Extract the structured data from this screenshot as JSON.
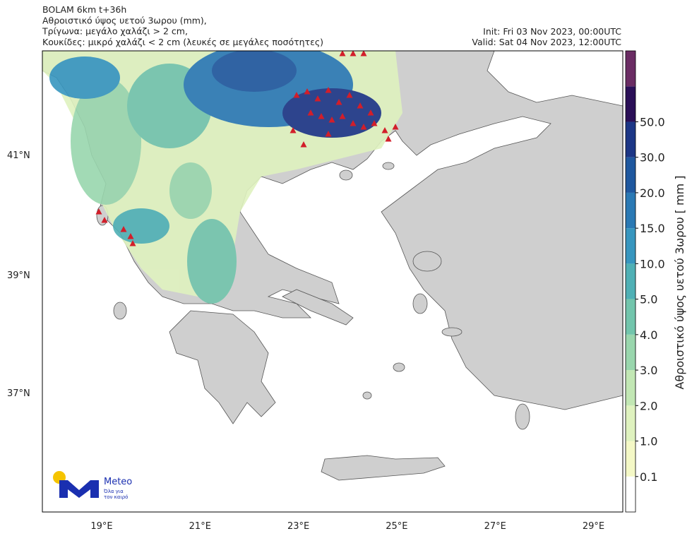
{
  "header": {
    "lines": [
      "BOLAM 6km t+36h",
      "Αθροιστικό ύψος υετού 3ωρου (mm),",
      "Τρίγωνα: μεγάλο χαλάζι > 2 cm,",
      "Κουκίδες: μικρό χαλάζι < 2 cm (λευκές σε μεγάλες ποσότητες)"
    ],
    "init": "Init: Fri 03 Nov 2023, 00:00UTC",
    "valid": "Valid: Sat 04 Nov 2023, 12:00UTC"
  },
  "axes": {
    "lat_labels": [
      "41°N",
      "39°N",
      "37°N"
    ],
    "lon_labels": [
      "19°E",
      "21°E",
      "23°E",
      "25°E",
      "27°E",
      "29°E"
    ]
  },
  "colorbar": {
    "label": "Αθροιστικό ύψος υετού 3ωρου [ mm ]",
    "colors": [
      "#ffffff",
      "#f4f8c6",
      "#dff2bf",
      "#c2e7b4",
      "#99d6ad",
      "#72c5ac",
      "#4fb0b5",
      "#3796bf",
      "#2a79b4",
      "#1f589f",
      "#1c3686",
      "#2a0f57",
      "#6a2c63"
    ],
    "tick_labels": [
      "0.1",
      "1.0",
      "2.0",
      "3.0",
      "4.0",
      "5.0",
      "10.0",
      "15.0",
      "20.0",
      "30.0",
      "50.0"
    ]
  },
  "logo": {
    "name": "Meteo",
    "tagline_lines": [
      "Όλα για",
      "τον καιρό"
    ]
  }
}
